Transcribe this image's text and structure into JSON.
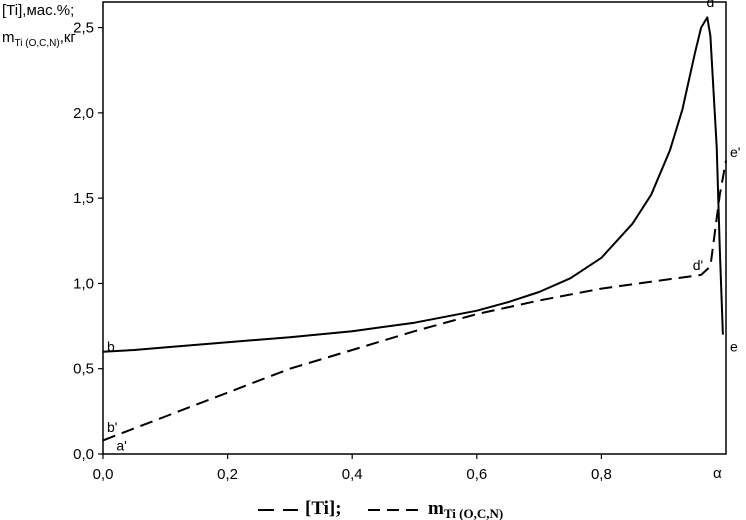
{
  "chart_data": {
    "type": "line",
    "ylabel_line1": "[Ti],мас.%;",
    "ylabel_line2_main": "m",
    "ylabel_line2_sub": "Ti (O,C,N)",
    "ylabel_line2_unit": ",кг",
    "xlabel": "α",
    "xlim": [
      0,
      1.0
    ],
    "ylim": [
      0,
      2.65
    ],
    "x_ticks": [
      0.0,
      0.2,
      0.4,
      0.6,
      0.8
    ],
    "x_tick_labels": [
      "0,0",
      "0,2",
      "0,4",
      "0,6",
      "0,8"
    ],
    "y_ticks": [
      0.0,
      0.5,
      1.0,
      1.5,
      2.0,
      2.5
    ],
    "y_tick_labels": [
      "0,0",
      "0,5",
      "1,0",
      "1,5",
      "2,0",
      "2,5"
    ],
    "series": [
      {
        "name": "[Ti]",
        "style": "solid",
        "x": [
          0.0,
          0.05,
          0.1,
          0.2,
          0.3,
          0.4,
          0.5,
          0.6,
          0.65,
          0.7,
          0.75,
          0.8,
          0.85,
          0.88,
          0.91,
          0.93,
          0.95,
          0.96,
          0.97,
          0.975,
          0.985,
          0.99,
          0.995
        ],
        "y": [
          0.6,
          0.61,
          0.625,
          0.655,
          0.685,
          0.72,
          0.77,
          0.84,
          0.89,
          0.95,
          1.03,
          1.15,
          1.35,
          1.52,
          1.78,
          2.02,
          2.35,
          2.5,
          2.56,
          2.45,
          1.8,
          1.2,
          0.7
        ]
      },
      {
        "name": "m",
        "name_sub": "Ti (O,C,N)",
        "style": "dashed",
        "x": [
          0.0,
          0.1,
          0.2,
          0.3,
          0.4,
          0.5,
          0.6,
          0.7,
          0.8,
          0.9,
          0.96,
          0.975,
          0.99,
          1.0
        ],
        "y": [
          0.08,
          0.22,
          0.36,
          0.5,
          0.61,
          0.72,
          0.82,
          0.9,
          0.97,
          1.02,
          1.05,
          1.1,
          1.52,
          1.72
        ]
      }
    ],
    "point_labels": [
      {
        "text": "b",
        "x": 0.0,
        "y": 0.6
      },
      {
        "text": "b'",
        "x": 0.0,
        "y": 0.13
      },
      {
        "text": "a'",
        "x": 0.015,
        "y": 0.02
      },
      {
        "text": "d",
        "x": 0.975,
        "y": 2.62
      },
      {
        "text": "d'",
        "x": 0.955,
        "y": 1.08
      },
      {
        "text": "e'",
        "x": 1.0,
        "y": 1.74
      },
      {
        "text": "e",
        "x": 1.0,
        "y": 0.6
      }
    ],
    "legend": {
      "placement": "bottom",
      "solid_label": "[Ti];",
      "dashed_label_main": "m",
      "dashed_label_sub": "Ti (O,C,N)"
    },
    "grid": false
  }
}
